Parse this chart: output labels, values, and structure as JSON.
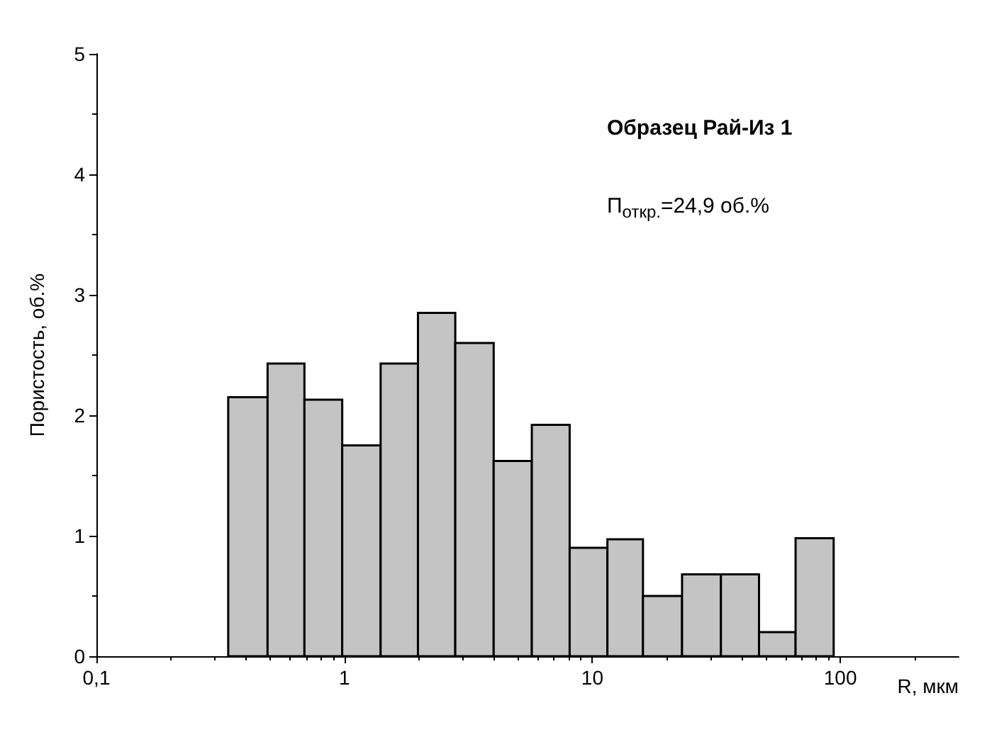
{
  "chart_data": {
    "type": "histogram",
    "xlabel": "R, мкм",
    "ylabel": "Пористость, об.%",
    "annotations": [
      "Образец Рай-Из 1",
      "П$_{откр.}$=24,9 об.%"
    ],
    "bins": [
      0.34,
      0.49,
      0.69,
      0.98,
      1.4,
      1.98,
      2.8,
      4.0,
      5.7,
      8.1,
      11.5,
      16,
      23,
      33,
      47,
      66,
      94
    ],
    "values": [
      2.15,
      2.43,
      2.13,
      1.75,
      2.43,
      2.85,
      2.6,
      1.62,
      1.92,
      0.9,
      0.97,
      0.5,
      0.68,
      0.68,
      0.2,
      0.98
    ],
    "color": "#c4c4c4",
    "log": "x",
    "xlim": [
      0.1,
      300
    ],
    "xticks": [
      {
        "value": 0.1,
        "label": "0,1"
      },
      1,
      10,
      100
    ],
    "ylim": [
      0,
      5
    ],
    "yticks": [
      0,
      1,
      2,
      3,
      4,
      5
    ],
    "grid": false
  }
}
